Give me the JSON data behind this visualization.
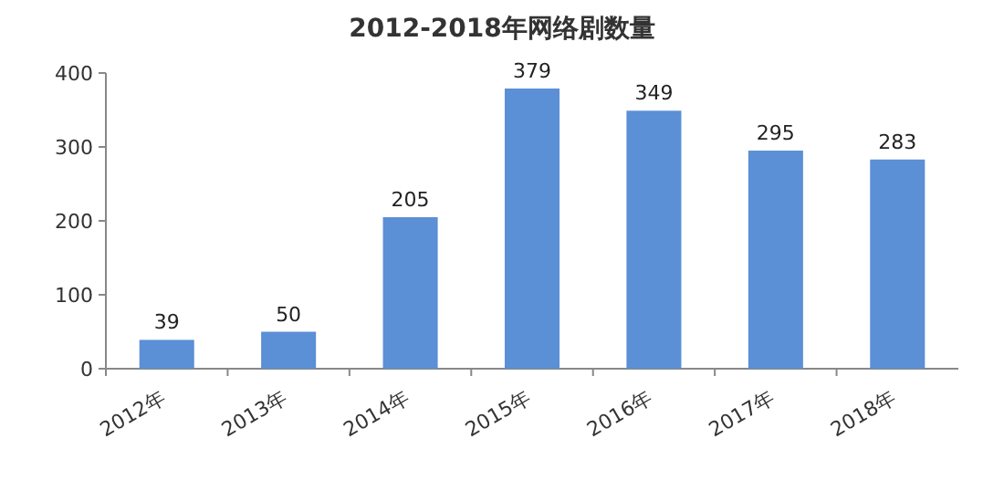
{
  "chart_data": {
    "type": "bar",
    "title": "2012-2018年网络剧数量",
    "categories": [
      "2012年",
      "2013年",
      "2014年",
      "2015年",
      "2016年",
      "2017年",
      "2018年"
    ],
    "values": [
      39,
      50,
      205,
      379,
      349,
      295,
      283
    ],
    "color": "#5b8fd6",
    "ylim": [
      0,
      400
    ],
    "yticks": [
      0,
      100,
      200,
      300,
      400
    ],
    "data_labels": true,
    "grid": false
  }
}
